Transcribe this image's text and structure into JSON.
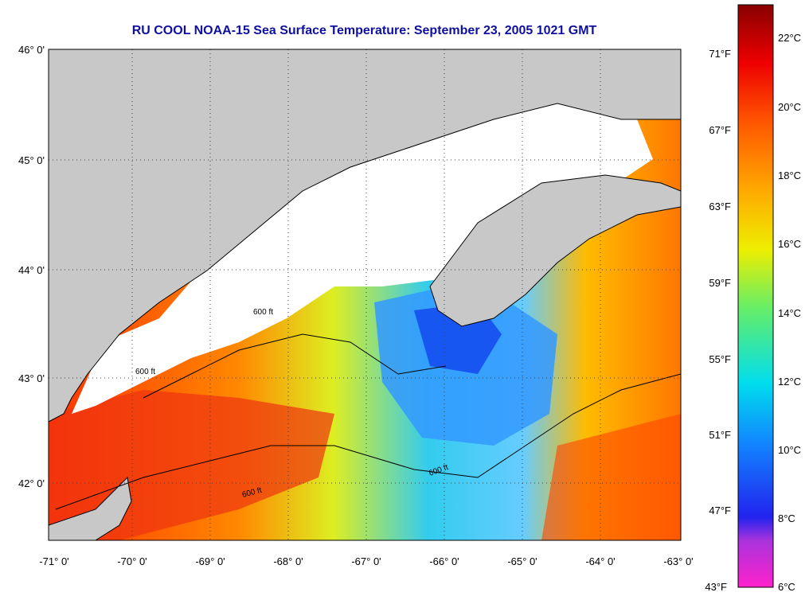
{
  "title": "RU COOL  NOAA-15  Sea Surface Temperature:  September 23, 2005 1021 GMT",
  "map": {
    "lat_ticks": [
      "46° 0'",
      "45° 0'",
      "44° 0'",
      "43° 0'",
      "42° 0'"
    ],
    "lon_ticks": [
      "-71° 0'",
      "-70° 0'",
      "-69° 0'",
      "-68° 0'",
      "-67° 0'",
      "-66° 0'",
      "-65° 0'",
      "-64° 0'",
      "-63° 0'"
    ],
    "contour_label": "600 ft",
    "colors": {
      "land": "#c8c8c8",
      "cloud": "#ffffff",
      "grid": "#444444"
    }
  },
  "colorbar": {
    "celsius_labels": [
      "22°C",
      "20°C",
      "18°C",
      "16°C",
      "14°C",
      "12°C",
      "10°C",
      "8°C",
      "6°C"
    ],
    "fahrenheit_labels": [
      "71°F",
      "67°F",
      "63°F",
      "59°F",
      "55°F",
      "51°F",
      "47°F",
      "43°F"
    ],
    "stops": [
      "#ff22cc",
      "#8833dd",
      "#2222ee",
      "#1188ff",
      "#00ddee",
      "#66ee66",
      "#eeee00",
      "#ffaa00",
      "#ff5500",
      "#ee0000",
      "#880000"
    ]
  }
}
